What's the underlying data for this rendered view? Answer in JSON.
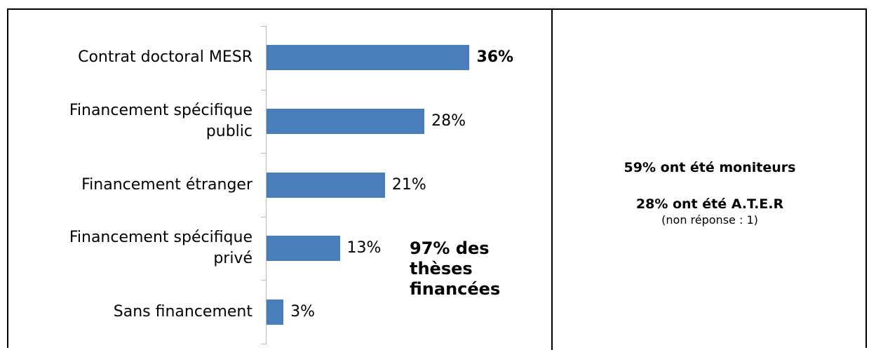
{
  "chart_data": {
    "type": "hbar",
    "categories": [
      "Contrat doctoral MESR",
      "Financement spécifique\npublic",
      "Financement étranger",
      "Financement spécifique\nprivé",
      "Sans financement"
    ],
    "values": [
      36,
      28,
      21,
      13,
      3
    ],
    "value_labels": [
      "36%",
      "28%",
      "21%",
      "13%",
      "3%"
    ],
    "bold_value_labels": [
      true,
      false,
      false,
      false,
      false
    ],
    "color": "#4a7ebb",
    "xlim": [
      0,
      50
    ],
    "annotation": "97% des\nthèses\nfinancées"
  },
  "side_notes": {
    "line1": "59% ont été moniteurs",
    "line2": "28% ont été A.T.E.R",
    "line3": "(non réponse : 1)"
  }
}
